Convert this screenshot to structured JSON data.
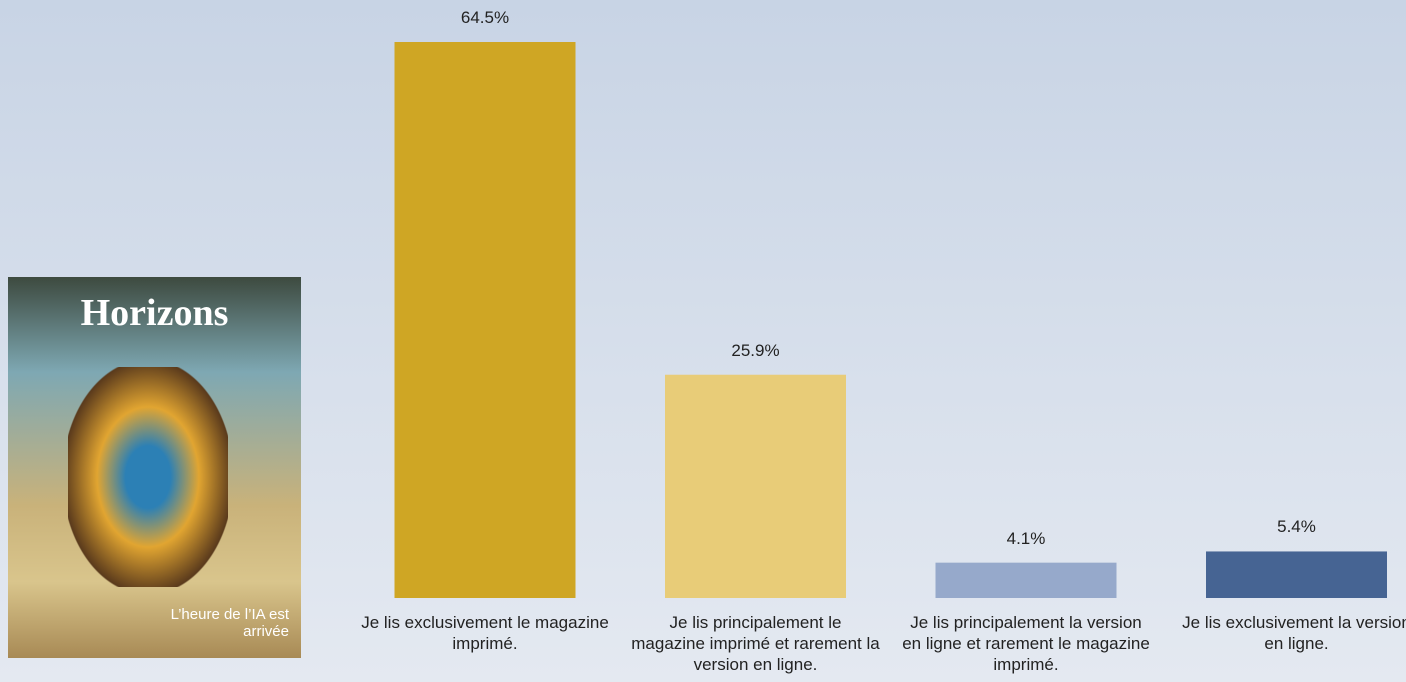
{
  "chart_data": {
    "type": "bar",
    "categories": [
      "Je lis exclusivement le magazine imprimé.",
      "Je lis principalement le magazine imprimé et rarement la version en ligne.",
      "Je lis principalement la version en ligne et rarement le magazine imprimé.",
      "Je lis exclusivement la version en ligne."
    ],
    "values": [
      64.5,
      25.9,
      4.1,
      5.4
    ],
    "value_labels": [
      "64.5%",
      "25.9%",
      "4.1%",
      "5.4%"
    ],
    "colors": [
      "#cfa624",
      "#e8cc78",
      "#96a9cb",
      "#466493"
    ]
  },
  "cover": {
    "title": "Horizons",
    "headline": "L’heure de l’IA est arrivée"
  }
}
